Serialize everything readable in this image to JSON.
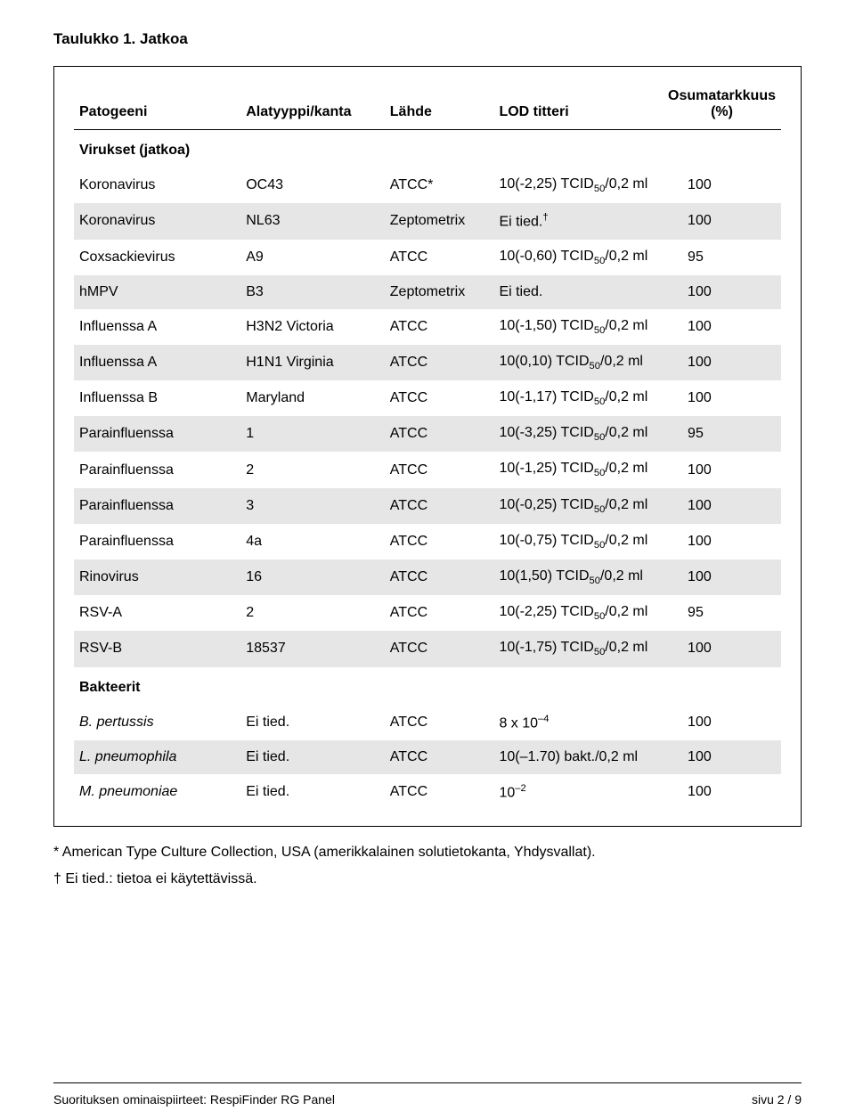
{
  "title": "Taulukko 1. Jatkoa",
  "headers": {
    "pathogen": "Patogeeni",
    "subtype": "Alatyyppi/kanta",
    "source": "Lähde",
    "lod": "LOD titteri",
    "accuracy_line1": "Osumatarkkuus",
    "accuracy_line2": "(%)"
  },
  "section_viruses": "Virukset (jatkoa)",
  "section_bacteria": "Bakteerit",
  "rows_virus": [
    {
      "pathogen": "Koronavirus",
      "subtype": "OC43",
      "source": "ATCC*",
      "lod": "10(-2,25) TCID₅₀/0,2 ml",
      "acc": "100",
      "shaded": false
    },
    {
      "pathogen": "Koronavirus",
      "subtype": "NL63",
      "source": "Zeptometrix",
      "lod": "Ei tied.†",
      "acc": "100",
      "shaded": true
    },
    {
      "pathogen": "Coxsackievirus",
      "subtype": "A9",
      "source": "ATCC",
      "lod": "10(-0,60) TCID₅₀/0,2 ml",
      "acc": "95",
      "shaded": false
    },
    {
      "pathogen": "hMPV",
      "subtype": "B3",
      "source": "Zeptometrix",
      "lod": "Ei tied.",
      "acc": "100",
      "shaded": true
    },
    {
      "pathogen": "Influenssa A",
      "subtype": "H3N2 Victoria",
      "source": "ATCC",
      "lod": "10(-1,50) TCID₅₀/0,2 ml",
      "acc": "100",
      "shaded": false
    },
    {
      "pathogen": "Influenssa A",
      "subtype": "H1N1 Virginia",
      "source": "ATCC",
      "lod": "10(0,10) TCID₅₀/0,2 ml",
      "acc": "100",
      "shaded": true
    },
    {
      "pathogen": "Influenssa B",
      "subtype": "Maryland",
      "source": "ATCC",
      "lod": "10(-1,17) TCID₅₀/0,2 ml",
      "acc": "100",
      "shaded": false
    },
    {
      "pathogen": "Parainfluenssa",
      "subtype": "1",
      "source": "ATCC",
      "lod": "10(-3,25) TCID₅₀/0,2 ml",
      "acc": "95",
      "shaded": true
    },
    {
      "pathogen": "Parainfluenssa",
      "subtype": "2",
      "source": "ATCC",
      "lod": "10(-1,25) TCID₅₀/0,2 ml",
      "acc": "100",
      "shaded": false
    },
    {
      "pathogen": "Parainfluenssa",
      "subtype": "3",
      "source": "ATCC",
      "lod": "10(-0,25) TCID₅₀/0,2 ml",
      "acc": "100",
      "shaded": true
    },
    {
      "pathogen": "Parainfluenssa",
      "subtype": "4a",
      "source": "ATCC",
      "lod": "10(-0,75) TCID₅₀/0,2 ml",
      "acc": "100",
      "shaded": false
    },
    {
      "pathogen": "Rinovirus",
      "subtype": "16",
      "source": "ATCC",
      "lod": "10(1,50) TCID₅₀/0,2 ml",
      "acc": "100",
      "shaded": true
    },
    {
      "pathogen": "RSV-A",
      "subtype": "2",
      "source": "ATCC",
      "lod": "10(-2,25) TCID₅₀/0,2 ml",
      "acc": "95",
      "shaded": false
    },
    {
      "pathogen": "RSV-B",
      "subtype": "18537",
      "source": "ATCC",
      "lod": "10(-1,75) TCID₅₀/0,2 ml",
      "acc": "100",
      "shaded": true
    }
  ],
  "rows_bacteria": [
    {
      "pathogen": "B. pertussis",
      "subtype": "Ei tied.",
      "source": "ATCC",
      "lod": "8 x 10⁻⁴",
      "acc": "100",
      "shaded": false,
      "italic": true
    },
    {
      "pathogen": "L. pneumophila",
      "subtype": "Ei tied.",
      "source": "ATCC",
      "lod": "10(–1.70) bakt./0,2 ml",
      "acc": "100",
      "shaded": true,
      "italic": true
    },
    {
      "pathogen": "M. pneumoniae",
      "subtype": "Ei tied.",
      "source": "ATCC",
      "lod": "10⁻²",
      "acc": "100",
      "shaded": false,
      "italic": true
    }
  ],
  "footnote1": "* American Type Culture Collection, USA (amerikkalainen solutietokanta, Yhdysvallat).",
  "footnote2": "† Ei tied.: tietoa ei käytettävissä.",
  "footer_left": "Suorituksen ominaispiirteet: RespiFinder RG Panel",
  "footer_right": "sivu 2 / 9",
  "colors": {
    "shaded_bg": "#e6e6e6",
    "text": "#000000",
    "bg": "#ffffff"
  },
  "fontsize": {
    "title": 17,
    "body": 16,
    "footer": 14
  }
}
